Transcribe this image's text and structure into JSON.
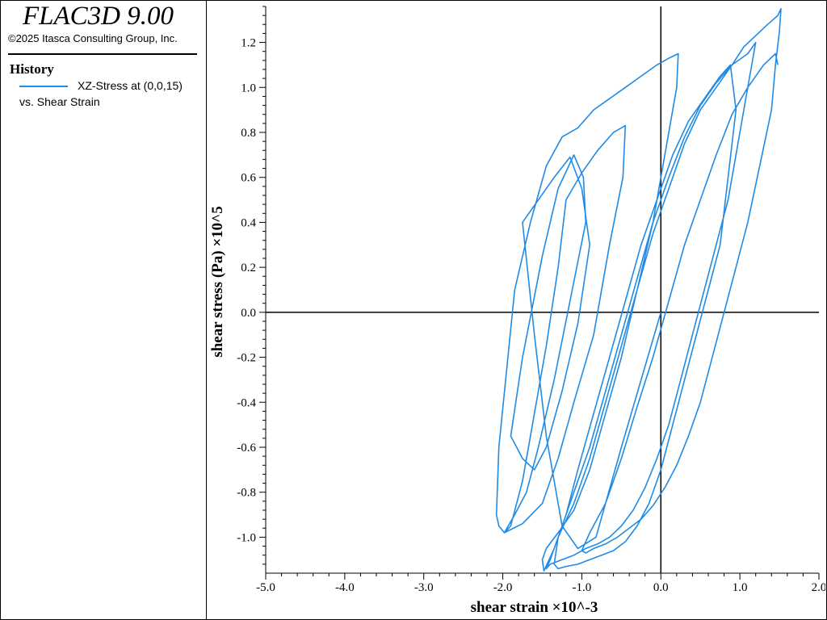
{
  "app": {
    "title": "FLAC3D 9.00",
    "copyright": "©2025 Itasca Consulting Group, Inc."
  },
  "legend": {
    "heading": "History",
    "line1": "XZ-Stress at (0,0,15)",
    "line2": "vs. Shear Strain",
    "color": "#1f8be6"
  },
  "chart_data": {
    "type": "line",
    "xlabel": "shear strain ×10^-3",
    "ylabel": "shear stress (Pa) ×10^5",
    "xlim": [
      -5.0,
      2.0
    ],
    "ylim": [
      -1.16,
      1.36
    ],
    "x_ticks": [
      "-5.0",
      "-4.0",
      "-3.0",
      "-2.0",
      "-1.0",
      "0.0",
      "1.0",
      "2.0"
    ],
    "y_ticks": [
      "-1.0",
      "-0.8",
      "-0.6",
      "-0.4",
      "-0.2",
      "0.0",
      "0.2",
      "0.4",
      "0.6",
      "0.8",
      "1.0",
      "1.2"
    ],
    "grid": false,
    "series": [
      {
        "color": "#1f8be6",
        "x": [
          0.0,
          -0.5,
          -0.82,
          -1.05,
          -1.25,
          -1.45,
          -1.6,
          -1.75,
          -1.55,
          -1.35,
          -1.15,
          -1.0,
          -0.9,
          -1.05,
          -1.25,
          -1.45,
          -1.6,
          -1.75,
          -1.9,
          -1.75,
          -1.5,
          -1.3,
          -1.1,
          -0.98,
          -0.95,
          -1.15,
          -1.35,
          -1.55,
          -1.7,
          -1.85,
          -1.98,
          -1.9,
          -1.75,
          -1.6,
          -1.45,
          -1.3,
          -1.2,
          -1.0,
          -0.8,
          -0.6,
          -0.45,
          -0.48,
          -0.65,
          -0.85,
          -1.1,
          -1.3,
          -1.5,
          -1.75,
          -1.98,
          -2.05,
          -2.08,
          -2.05,
          -1.95,
          -1.85,
          -1.65,
          -1.45,
          -1.25,
          -1.05,
          -0.85,
          -0.65,
          -0.45,
          -0.25,
          -0.05,
          0.1,
          0.22,
          0.2,
          0.05,
          -0.1,
          -0.3,
          -0.5,
          -0.7,
          -0.9,
          -1.1,
          -1.3,
          -1.45,
          -1.5,
          -1.48,
          -1.35,
          -1.2,
          -1.05,
          -0.85,
          -0.65,
          -0.45,
          -0.25,
          -0.05,
          0.15,
          0.35,
          0.55,
          0.75,
          0.88,
          0.95,
          0.85,
          0.75,
          0.6,
          0.45,
          0.3,
          0.15,
          0.0,
          -0.15,
          -0.3,
          -0.45,
          -0.6,
          -0.75,
          -0.9,
          -1.05,
          -1.2,
          -1.3,
          -1.35,
          -1.3,
          -1.1,
          -0.9,
          -0.7,
          -0.5,
          -0.3,
          -0.1,
          0.1,
          0.3,
          0.5,
          0.7,
          0.9,
          1.1,
          1.2,
          1.15,
          1.05,
          0.95,
          0.85,
          0.7,
          0.55,
          0.4,
          0.25,
          0.1,
          -0.05,
          -0.2,
          -0.35,
          -0.5,
          -0.65,
          -0.8,
          -0.95,
          -1.1,
          -1.25,
          -1.4,
          -1.45,
          -1.4,
          -1.25,
          -1.1,
          -0.9,
          -0.7,
          -0.5,
          -0.3,
          -0.1,
          0.1,
          0.3,
          0.5,
          0.7,
          0.9,
          1.05,
          1.2,
          1.35,
          1.48,
          1.52,
          1.5,
          1.45,
          1.4,
          1.25,
          1.1,
          0.95,
          0.8,
          0.65,
          0.5,
          0.35,
          0.2,
          0.05,
          -0.1,
          -0.25,
          -0.4,
          -0.55,
          -0.7,
          -0.85,
          -0.95,
          -1.0,
          -0.9,
          -0.7,
          -0.5,
          -0.3,
          -0.1,
          0.1,
          0.3,
          0.5,
          0.7,
          0.9,
          1.1,
          1.3,
          1.45,
          1.48
        ],
        "y": [
          0.0,
          -0.6,
          -1.0,
          -1.05,
          -0.95,
          -0.55,
          -0.1,
          0.4,
          0.5,
          0.6,
          0.69,
          0.55,
          0.3,
          -0.05,
          -0.35,
          -0.6,
          -0.7,
          -0.65,
          -0.55,
          -0.2,
          0.25,
          0.55,
          0.7,
          0.6,
          0.4,
          0.05,
          -0.3,
          -0.6,
          -0.8,
          -0.9,
          -0.98,
          -0.95,
          -0.75,
          -0.45,
          -0.15,
          0.2,
          0.5,
          0.62,
          0.72,
          0.8,
          0.83,
          0.6,
          0.3,
          -0.1,
          -0.4,
          -0.65,
          -0.85,
          -0.94,
          -0.98,
          -0.95,
          -0.9,
          -0.6,
          -0.25,
          0.1,
          0.4,
          0.65,
          0.78,
          0.82,
          0.9,
          0.95,
          1.0,
          1.05,
          1.1,
          1.13,
          1.15,
          1.0,
          0.7,
          0.4,
          0.1,
          -0.2,
          -0.45,
          -0.7,
          -0.88,
          -0.98,
          -1.05,
          -1.1,
          -1.15,
          -1.05,
          -0.9,
          -0.7,
          -0.45,
          -0.2,
          0.05,
          0.3,
          0.5,
          0.7,
          0.85,
          0.95,
          1.05,
          1.1,
          0.9,
          0.6,
          0.3,
          0.1,
          -0.1,
          -0.3,
          -0.5,
          -0.7,
          -0.85,
          -0.95,
          -1.02,
          -1.06,
          -1.08,
          -1.1,
          -1.12,
          -1.13,
          -1.14,
          -1.12,
          -1.0,
          -0.85,
          -0.65,
          -0.4,
          -0.15,
          0.1,
          0.35,
          0.55,
          0.75,
          0.9,
          1.0,
          1.1,
          1.15,
          1.2,
          1.1,
          0.9,
          0.7,
          0.5,
          0.3,
          0.1,
          -0.1,
          -0.3,
          -0.5,
          -0.65,
          -0.78,
          -0.88,
          -0.95,
          -1.0,
          -1.03,
          -1.05,
          -1.08,
          -1.1,
          -1.12,
          -1.14,
          -1.1,
          -0.95,
          -0.8,
          -0.6,
          -0.35,
          -0.1,
          0.15,
          0.4,
          0.6,
          0.78,
          0.92,
          1.02,
          1.1,
          1.18,
          1.23,
          1.28,
          1.32,
          1.35,
          1.25,
          1.1,
          0.9,
          0.65,
          0.4,
          0.2,
          0.0,
          -0.2,
          -0.4,
          -0.55,
          -0.68,
          -0.78,
          -0.86,
          -0.92,
          -0.96,
          -1.0,
          -1.03,
          -1.05,
          -1.07,
          -1.06,
          -0.98,
          -0.85,
          -0.65,
          -0.42,
          -0.2,
          0.05,
          0.3,
          0.5,
          0.7,
          0.88,
          1.0,
          1.1,
          1.15,
          1.1
        ]
      }
    ]
  }
}
